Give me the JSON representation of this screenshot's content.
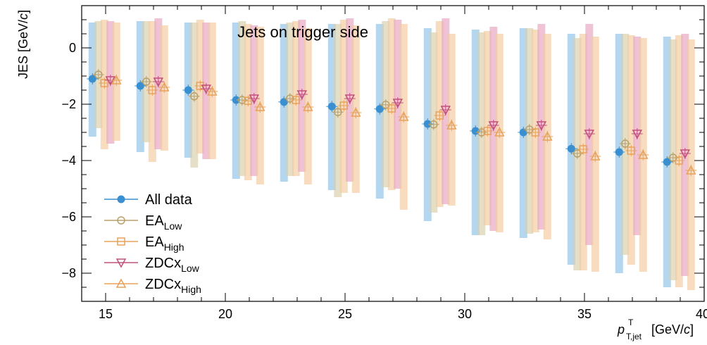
{
  "chart_data": {
    "type": "scatter",
    "title": "Jets on trigger side",
    "xlabel_main": "p",
    "xlabel_sup": "T",
    "xlabel_sub": "T,jet",
    "xlabel_unit": "[GeV/",
    "xlabel_c": "c",
    "xlabel_close": "]",
    "ylabel_main": "JES [GeV/",
    "ylabel_c": "c",
    "ylabel_close": "]",
    "xlim": [
      14,
      40
    ],
    "ylim": [
      -9.0,
      1.5
    ],
    "x_ticks": [
      15,
      20,
      25,
      30,
      35
    ],
    "x_tick_labels": [
      "15",
      "20",
      "25",
      "30",
      "35"
    ],
    "x_edge_label": "40",
    "y_ticks": [
      0,
      -2,
      -4,
      -6,
      -8
    ],
    "y_tick_labels": [
      "0",
      "−2",
      "−4",
      "−6",
      "−8"
    ],
    "grid": false,
    "legend_position": "bottom-left",
    "x_centers": [
      15,
      17,
      19,
      21,
      23,
      25,
      27,
      29,
      31,
      33,
      35,
      37,
      39
    ],
    "series": [
      {
        "name": "All data",
        "sub": "",
        "marker": "filled-circle",
        "color": "#3a8fd0",
        "band_color": "#8cc2e6",
        "offset": -0.55,
        "values": [
          -1.1,
          -1.35,
          -1.5,
          -1.85,
          -1.92,
          -2.08,
          -2.17,
          -2.7,
          -2.95,
          -3.0,
          -3.58,
          -3.7,
          -4.05
        ],
        "band_low": [
          -3.15,
          -3.7,
          -3.9,
          -4.65,
          -4.75,
          -5.05,
          -5.35,
          -6.15,
          -6.65,
          -6.75,
          -7.7,
          -8.0,
          -8.5
        ],
        "band_high": [
          0.9,
          0.95,
          0.9,
          0.9,
          0.85,
          0.85,
          0.85,
          0.7,
          0.65,
          0.7,
          0.5,
          0.5,
          0.4
        ]
      },
      {
        "name": "EA",
        "sub": "Low",
        "marker": "open-circle",
        "color": "#b8a06a",
        "band_color": "#d9cea9",
        "offset": -0.3,
        "values": [
          -0.95,
          -1.2,
          -1.72,
          -1.85,
          -1.8,
          -2.28,
          -2.02,
          -2.72,
          -3.0,
          -2.9,
          -3.75,
          -3.4,
          -3.9
        ],
        "band_low": [
          -2.85,
          -3.35,
          -4.25,
          -4.55,
          -4.55,
          -5.3,
          -4.95,
          -5.85,
          -6.65,
          -6.6,
          -7.9,
          -7.35,
          -8.25
        ],
        "band_high": [
          0.95,
          0.95,
          0.9,
          0.95,
          0.9,
          0.85,
          0.95,
          0.55,
          0.55,
          0.7,
          0.35,
          0.5,
          0.3
        ]
      },
      {
        "name": "EA",
        "sub": "High",
        "marker": "open-square",
        "color": "#e8a25a",
        "band_color": "#f5c99e",
        "offset": -0.05,
        "values": [
          -1.25,
          -1.5,
          -1.35,
          -1.88,
          -1.85,
          -2.05,
          -2.15,
          -2.4,
          -2.95,
          -3.0,
          -3.6,
          -3.65,
          -4.0
        ],
        "band_low": [
          -3.6,
          -4.05,
          -3.75,
          -4.7,
          -4.55,
          -5.15,
          -5.05,
          -5.65,
          -6.3,
          -6.55,
          -7.9,
          -7.7,
          -8.5
        ],
        "band_high": [
          1.0,
          0.95,
          1.0,
          0.85,
          0.95,
          1.0,
          1.05,
          0.95,
          0.6,
          0.65,
          0.5,
          0.45,
          0.45
        ]
      },
      {
        "name": "ZDCx",
        "sub": "Low",
        "marker": "open-triangle-down",
        "color": "#c0507c",
        "band_color": "#e6a3bf",
        "offset": 0.2,
        "values": [
          -1.15,
          -1.2,
          -1.45,
          -1.8,
          -1.65,
          -1.8,
          -1.95,
          -2.2,
          -2.75,
          -2.75,
          -3.05,
          -3.05,
          -3.75
        ],
        "band_low": [
          -3.4,
          -3.6,
          -3.95,
          -4.55,
          -4.4,
          -4.75,
          -5.0,
          -5.55,
          -6.5,
          -6.45,
          -7.0,
          -6.65,
          -8.1
        ],
        "band_high": [
          0.95,
          1.05,
          0.9,
          0.8,
          1.0,
          1.05,
          1.0,
          1.05,
          0.75,
          0.85,
          0.85,
          0.4,
          0.5
        ]
      },
      {
        "name": "ZDCx",
        "sub": "High",
        "marker": "open-triangle-up",
        "color": "#e8a25a",
        "band_color": "#f5c99e",
        "offset": 0.45,
        "values": [
          -1.15,
          -1.4,
          -1.55,
          -2.1,
          -2.1,
          -2.3,
          -2.45,
          -2.75,
          -3.0,
          -3.15,
          -3.85,
          -3.8,
          -4.35
        ],
        "band_low": [
          -3.3,
          -3.65,
          -3.95,
          -4.85,
          -4.85,
          -5.15,
          -5.75,
          -5.6,
          -6.55,
          -6.8,
          -7.95,
          -7.95,
          -8.6
        ],
        "band_high": [
          0.9,
          0.8,
          0.9,
          0.75,
          0.7,
          0.8,
          0.85,
          0.5,
          0.5,
          0.5,
          0.4,
          0.35,
          0.3
        ]
      }
    ]
  }
}
